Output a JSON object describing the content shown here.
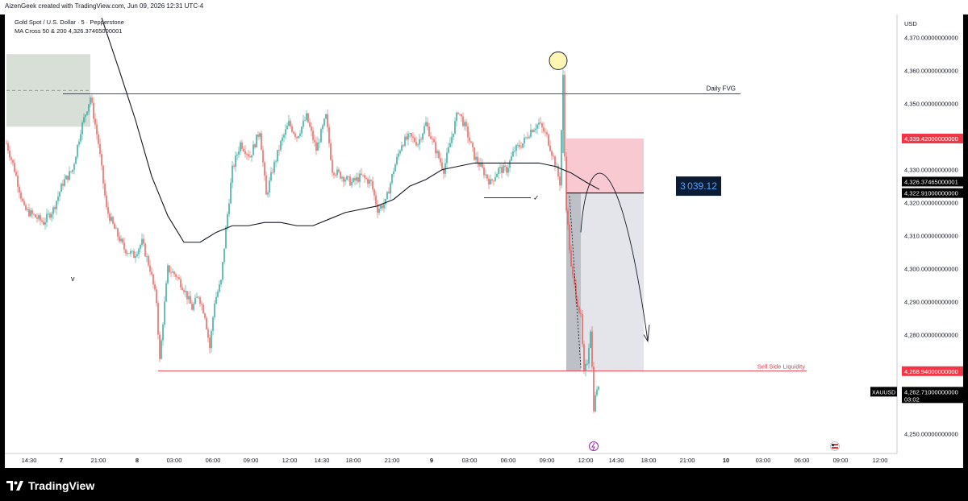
{
  "header": {
    "credit": "AizenGeek created with TradingView.com, Jun 09, 2026 12:31 UTC-4"
  },
  "legend": {
    "symbol": "Gold Spot / U.S. Dollar · 5 · Pepperstone",
    "ma": "MA Cross 50 & 200  4,326.37465000001"
  },
  "brand": {
    "name": "TradingView",
    "icon": "tradingview-logo-icon"
  },
  "chart_data": {
    "type": "candlestick",
    "currency": "USD",
    "ylim": [
      4244,
      4377
    ],
    "y_ticks": [
      {
        "value": 4370,
        "label": "4,370.00000000000"
      },
      {
        "value": 4360,
        "label": "4,360.00000000000"
      },
      {
        "value": 4350,
        "label": "4,350.00000000000"
      },
      {
        "value": 4330,
        "label": "4,330.00000000000"
      },
      {
        "value": 4320,
        "label": "4,320.00000000000"
      },
      {
        "value": 4310,
        "label": "4,310.00000000000"
      },
      {
        "value": 4300,
        "label": "4,300.00000000000"
      },
      {
        "value": 4290,
        "label": "4,290.00000000000"
      },
      {
        "value": 4280,
        "label": "4,280.00000000000"
      },
      {
        "value": 4250,
        "label": "4,250.00000000000"
      }
    ],
    "price_labels": [
      {
        "value": 4339.42,
        "label": "4,339.42000000000",
        "color": "#f23645"
      },
      {
        "value": 4326.37465000001,
        "label": "4,326.37465000001",
        "color": "#000000"
      },
      {
        "value": 4322.91,
        "label": "4,322.91000000000",
        "color": "#000000"
      },
      {
        "value": 4268.94,
        "label": "4,268.94000000000",
        "color": "#f23645"
      }
    ],
    "last_price": {
      "symbol": "XAUUSD",
      "value": 4262.71,
      "label": "4,262.71000000000",
      "countdown": "03:02"
    },
    "x_labels": [
      "14:30",
      "7",
      "21:00",
      "8",
      "03:00",
      "06:00",
      "09:00",
      "12:00",
      "14:30",
      "18:00",
      "21:00",
      "9",
      "03:00",
      "06:00",
      "09:00",
      "12:00",
      "14:30",
      "18:00",
      "21:00",
      "10",
      "03:00",
      "06:00",
      "09:00",
      "12:00"
    ],
    "x_label_bold": [
      "7",
      "8",
      "9",
      "10"
    ],
    "price_path": [
      [
        0,
        4338
      ],
      [
        10,
        4330
      ],
      [
        22,
        4318
      ],
      [
        34,
        4316
      ],
      [
        46,
        4314
      ],
      [
        58,
        4318
      ],
      [
        70,
        4326
      ],
      [
        82,
        4330
      ],
      [
        92,
        4342
      ],
      [
        104,
        4352
      ],
      [
        114,
        4338
      ],
      [
        124,
        4318
      ],
      [
        134,
        4312
      ],
      [
        146,
        4306
      ],
      [
        158,
        4304
      ],
      [
        168,
        4308
      ],
      [
        178,
        4300
      ],
      [
        186,
        4290
      ],
      [
        190,
        4272
      ],
      [
        194,
        4284
      ],
      [
        200,
        4300
      ],
      [
        210,
        4298
      ],
      [
        220,
        4294
      ],
      [
        230,
        4288
      ],
      [
        238,
        4292
      ],
      [
        246,
        4286
      ],
      [
        252,
        4276
      ],
      [
        258,
        4290
      ],
      [
        266,
        4296
      ],
      [
        272,
        4312
      ],
      [
        280,
        4330
      ],
      [
        290,
        4338
      ],
      [
        302,
        4334
      ],
      [
        314,
        4342
      ],
      [
        322,
        4322
      ],
      [
        330,
        4330
      ],
      [
        340,
        4338
      ],
      [
        350,
        4344
      ],
      [
        360,
        4340
      ],
      [
        372,
        4346
      ],
      [
        384,
        4336
      ],
      [
        396,
        4346
      ],
      [
        404,
        4330
      ],
      [
        416,
        4328
      ],
      [
        428,
        4326
      ],
      [
        440,
        4328
      ],
      [
        452,
        4326
      ],
      [
        460,
        4318
      ],
      [
        470,
        4320
      ],
      [
        480,
        4330
      ],
      [
        490,
        4338
      ],
      [
        500,
        4340
      ],
      [
        510,
        4338
      ],
      [
        520,
        4344
      ],
      [
        532,
        4336
      ],
      [
        542,
        4330
      ],
      [
        552,
        4340
      ],
      [
        560,
        4348
      ],
      [
        570,
        4342
      ],
      [
        580,
        4334
      ],
      [
        590,
        4330
      ],
      [
        600,
        4326
      ],
      [
        610,
        4330
      ],
      [
        620,
        4330
      ],
      [
        630,
        4336
      ],
      [
        640,
        4338
      ],
      [
        650,
        4342
      ],
      [
        660,
        4344
      ],
      [
        670,
        4340
      ],
      [
        680,
        4332
      ],
      [
        686,
        4326
      ],
      [
        690,
        4358
      ],
      [
        693,
        4322
      ],
      [
        700,
        4300
      ],
      [
        706,
        4292
      ],
      [
        712,
        4285
      ],
      [
        716,
        4268
      ],
      [
        720,
        4272
      ],
      [
        724,
        4282
      ],
      [
        728,
        4258
      ],
      [
        732,
        4264
      ],
      [
        735,
        4262.71
      ]
    ],
    "ma_path": [
      [
        118,
        4376
      ],
      [
        140,
        4360
      ],
      [
        160,
        4345
      ],
      [
        180,
        4328
      ],
      [
        200,
        4316
      ],
      [
        220,
        4308
      ],
      [
        240,
        4308
      ],
      [
        260,
        4311
      ],
      [
        280,
        4313
      ],
      [
        300,
        4313
      ],
      [
        320,
        4314
      ],
      [
        340,
        4314
      ],
      [
        360,
        4313
      ],
      [
        380,
        4313
      ],
      [
        400,
        4315
      ],
      [
        420,
        4317
      ],
      [
        440,
        4318
      ],
      [
        460,
        4319
      ],
      [
        480,
        4321
      ],
      [
        500,
        4325
      ],
      [
        520,
        4327
      ],
      [
        540,
        4330
      ],
      [
        560,
        4331
      ],
      [
        580,
        4332
      ],
      [
        600,
        4332
      ],
      [
        620,
        4332
      ],
      [
        640,
        4332
      ],
      [
        660,
        4332
      ],
      [
        680,
        4331
      ],
      [
        700,
        4329
      ],
      [
        720,
        4326
      ],
      [
        735,
        4324
      ]
    ],
    "annotations": {
      "daily_fvg": {
        "label": "Daily FVG",
        "price": 4353,
        "x_start": 70,
        "x_end": 910
      },
      "fvg_zone": {
        "price_high": 4365,
        "price_low": 4343,
        "x_start": 0,
        "x_end": 104
      },
      "sell_side_liquidity": {
        "label": "Sell Side Liquidity",
        "price": 4269,
        "x_start": 188,
        "x_end": 992,
        "color": "#f23645"
      },
      "position": {
        "entry": 4322.91,
        "stop": 4339.42,
        "target": 4268.94,
        "x_start": 694,
        "x_end": 790
      },
      "position_value": "3 039.12",
      "swing_low_line": {
        "price": 4321.5,
        "x_start": 592,
        "x_end": 650
      },
      "checkmark": "✓",
      "v_mark": "v",
      "circle_marker_price": 4363
    }
  }
}
